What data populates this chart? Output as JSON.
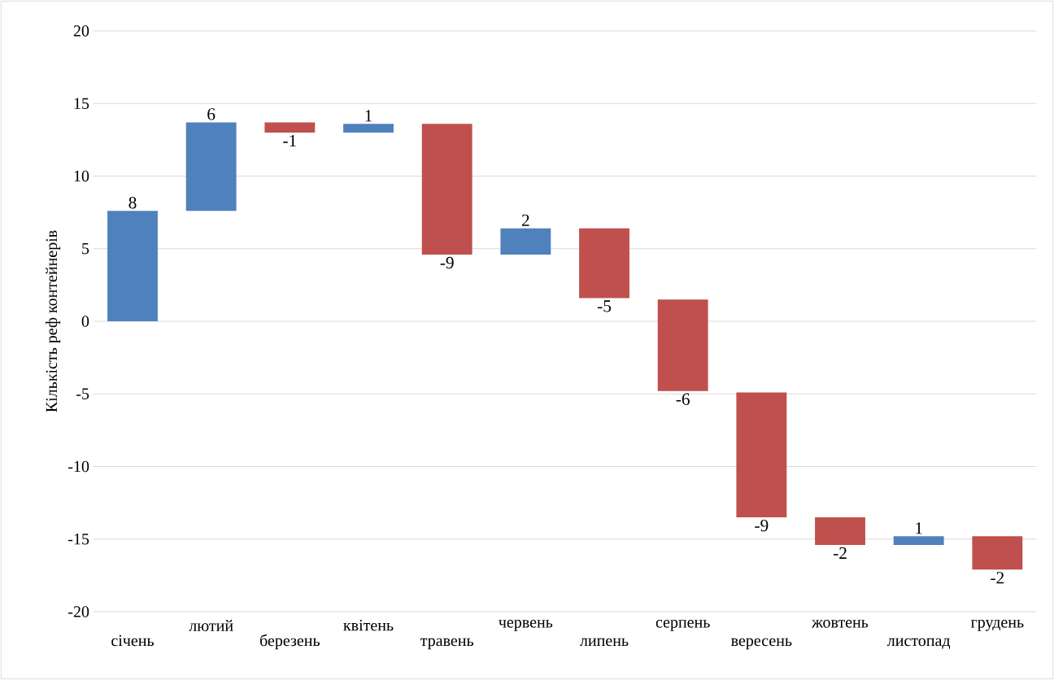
{
  "chart_data": {
    "type": "bar",
    "ylabel": "Кількість реф контейнерів",
    "categories": [
      "січень",
      "лютий",
      "березень",
      "квітень",
      "травень",
      "червень",
      "липень",
      "серпень",
      "вересень",
      "жовтень",
      "листопад",
      "грудень"
    ],
    "base": [
      0,
      7.6,
      13.7,
      13.0,
      13.6,
      4.6,
      6.4,
      1.5,
      -4.9,
      -13.5,
      -15.4,
      -14.8
    ],
    "values": [
      7.6,
      6.1,
      -0.7,
      0.6,
      -9.0,
      1.8,
      -4.8,
      -6.3,
      -8.6,
      -1.9,
      0.6,
      -2.3
    ],
    "value_labels": [
      "8",
      "6",
      "-1",
      "1",
      "-9",
      "2",
      "-5",
      "-6",
      "-9",
      "-2",
      "1",
      "-2"
    ],
    "colors": [
      "#4f81bd",
      "#4f81bd",
      "#c0504d",
      "#4f81bd",
      "#c0504d",
      "#4f81bd",
      "#c0504d",
      "#c0504d",
      "#c0504d",
      "#c0504d",
      "#4f81bd",
      "#c0504d"
    ],
    "ylim": [
      -20,
      20
    ],
    "yticks": [
      -20,
      -15,
      -10,
      -5,
      0,
      5,
      10,
      15,
      20
    ],
    "grid": "y"
  }
}
